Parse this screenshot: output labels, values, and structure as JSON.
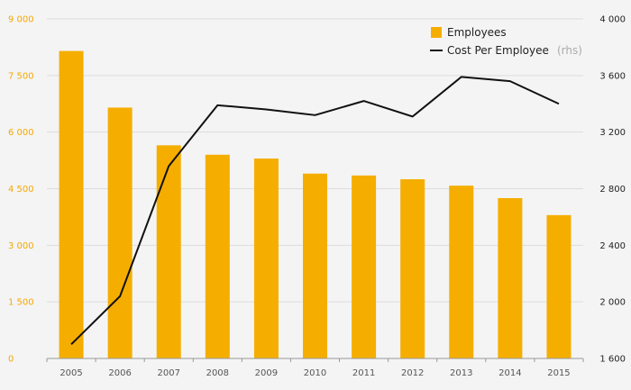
{
  "chart_data": {
    "type": "bar",
    "categories": [
      "2005",
      "2006",
      "2007",
      "2008",
      "2009",
      "2010",
      "2011",
      "2012",
      "2013",
      "2014",
      "2015"
    ],
    "series": [
      {
        "name": "Employees",
        "type": "bar",
        "axis": "left",
        "color": "#f5ae00",
        "values": [
          8150,
          6650,
          5650,
          5400,
          5300,
          4900,
          4850,
          4750,
          4580,
          4250,
          3800
        ]
      },
      {
        "name": "Cost Per Employee",
        "legend_suffix": "(rhs)",
        "type": "line",
        "axis": "right",
        "color": "#111111",
        "values": [
          1700,
          2040,
          2960,
          3390,
          3360,
          3320,
          3420,
          3310,
          3590,
          3560,
          3400
        ]
      }
    ],
    "left_axis": {
      "ylim": [
        0,
        9000
      ],
      "ticks": [
        0,
        1500,
        3000,
        4500,
        6000,
        7500,
        9000
      ],
      "tick_labels": [
        "0",
        "1 500",
        "3 000",
        "4 500",
        "6 000",
        "7 500",
        "9 000"
      ],
      "color": "#f5a800"
    },
    "right_axis": {
      "ylim": [
        1600,
        4000
      ],
      "ticks": [
        1600,
        2000,
        2400,
        2800,
        3200,
        3600,
        4000
      ],
      "tick_labels": [
        "1 600",
        "2 000",
        "2 400",
        "2 800",
        "3 200",
        "3 600",
        "4 000"
      ],
      "color": "#222222"
    },
    "grid": true,
    "legend_position": "top-right",
    "title": "",
    "xlabel": "",
    "ylabel": ""
  }
}
